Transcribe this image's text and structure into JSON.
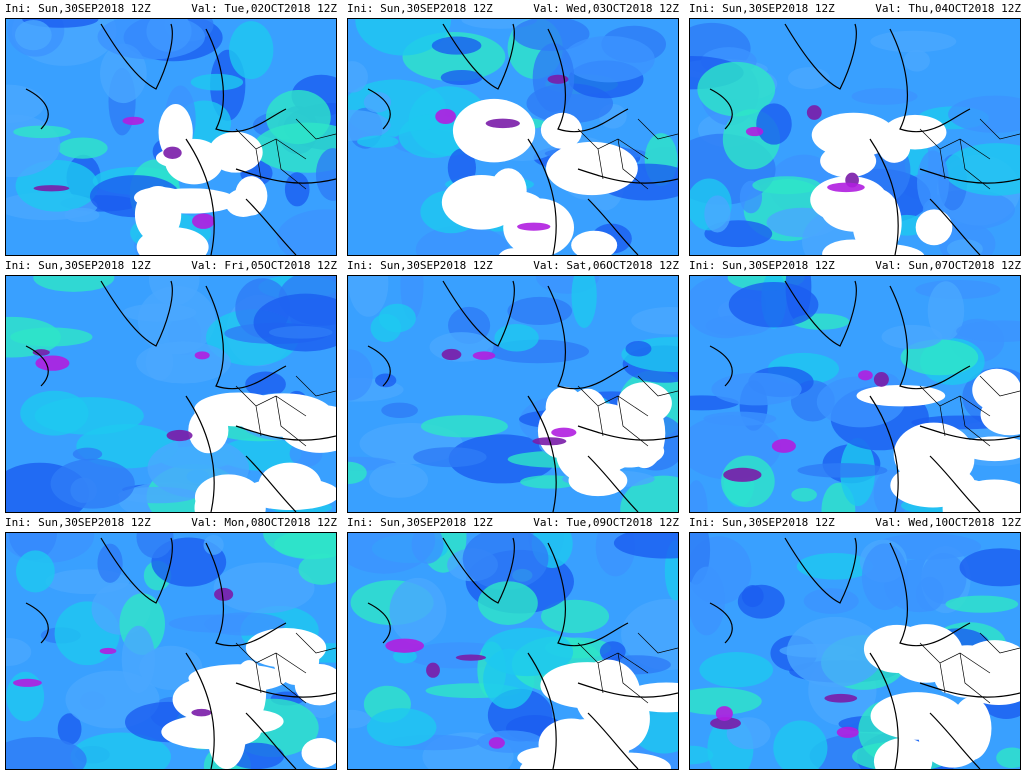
{
  "panels": [
    {
      "ini": "Ini: Sun,30SEP2018 12Z",
      "valid": "Val: Tue,02OCT2018 12Z"
    },
    {
      "ini": "Ini: Sun,30SEP2018 12Z",
      "valid": "Val: Wed,03OCT2018 12Z"
    },
    {
      "ini": "Ini: Sun,30SEP2018 12Z",
      "valid": "Val: Thu,04OCT2018 12Z"
    },
    {
      "ini": "Ini: Sun,30SEP2018 12Z",
      "valid": "Val: Fri,05OCT2018 12Z"
    },
    {
      "ini": "Ini: Sun,30SEP2018 12Z",
      "valid": "Val: Sat,06OCT2018 12Z"
    },
    {
      "ini": "Ini: Sun,30SEP2018 12Z",
      "valid": "Val: Sun,07OCT2018 12Z"
    },
    {
      "ini": "Ini: Sun,30SEP2018 12Z",
      "valid": "Val: Mon,08OCT2018 12Z"
    },
    {
      "ini": "Ini: Sun,30SEP2018 12Z",
      "valid": "Val: Tue,09OCT2018 12Z"
    },
    {
      "ini": "Ini: Sun,30SEP2018 12Z",
      "valid": "Val: Wed,10OCT2018 12Z"
    }
  ]
}
